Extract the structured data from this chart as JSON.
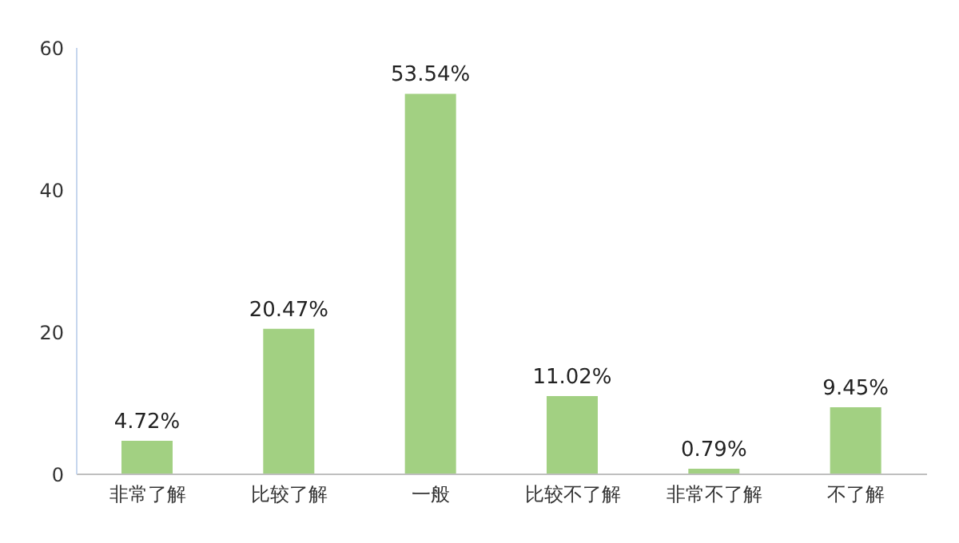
{
  "chart_data": {
    "type": "bar",
    "categories": [
      "非常了解",
      "比较了解",
      "一般",
      "比较不了解",
      "非常不了解",
      "不了解"
    ],
    "values": [
      4.72,
      20.47,
      53.54,
      11.02,
      0.79,
      9.45
    ],
    "value_labels": [
      "4.72%",
      "20.47%",
      "53.54%",
      "11.02%",
      "0.79%",
      "9.45%"
    ],
    "color": "#a2d082",
    "ylim": [
      0,
      60
    ],
    "yticks": [
      0,
      20,
      40,
      60
    ],
    "grid": false,
    "legend": false
  }
}
